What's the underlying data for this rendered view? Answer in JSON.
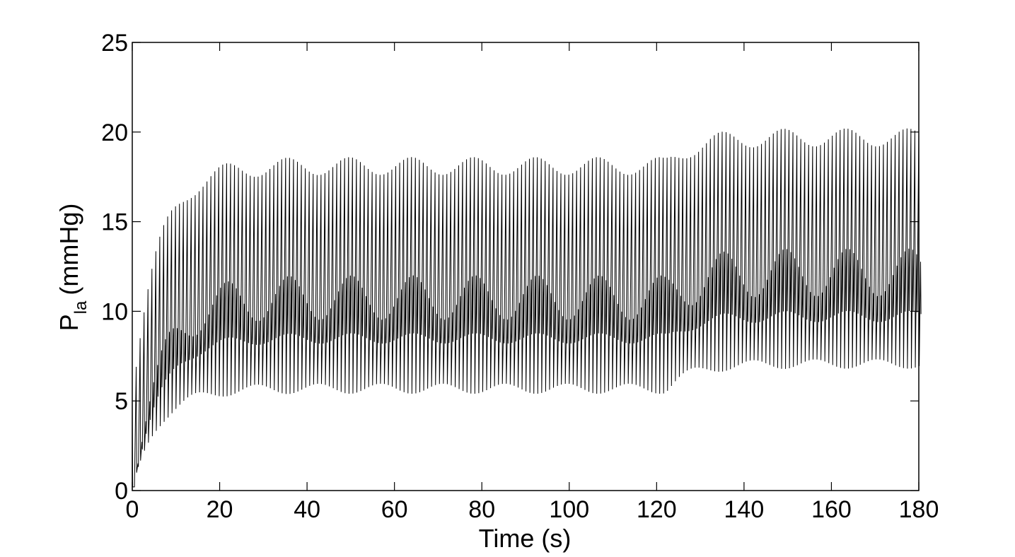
{
  "chart_data": {
    "type": "line",
    "title": "",
    "xlabel": "Time (s)",
    "ylabel": {
      "base": "P",
      "subscript": "la",
      "unit": "(mmHg)"
    },
    "xlim": [
      0,
      180
    ],
    "ylim": [
      0,
      25
    ],
    "x_ticks": [
      0,
      20,
      40,
      60,
      80,
      100,
      120,
      140,
      160,
      180
    ],
    "y_ticks": [
      0,
      5,
      10,
      15,
      20,
      25
    ],
    "x_tick_labels": [
      "0",
      "20",
      "40",
      "60",
      "80",
      "100",
      "120",
      "140",
      "160",
      "180"
    ],
    "y_tick_labels": [
      "0",
      "5",
      "10",
      "15",
      "20",
      "25"
    ],
    "grid": false,
    "legend": "none",
    "line_color": "#000000",
    "series": [
      {
        "beat_period_s": 0.9,
        "respiratory_period_s": 14.2,
        "segments": [
          {
            "from_s": 0,
            "to_s": 120,
            "start_max": 6.0,
            "max": 18.6,
            "start_min": 0.2,
            "min": 5.4,
            "band_high": 12.0,
            "band_low": 8.2,
            "rise_time_s": 6
          },
          {
            "from_s": 122,
            "to_s": 180,
            "max": 20.2,
            "min": 6.8,
            "band_high": 13.5,
            "band_low": 9.4,
            "rise_time_s": 6
          }
        ]
      }
    ]
  }
}
